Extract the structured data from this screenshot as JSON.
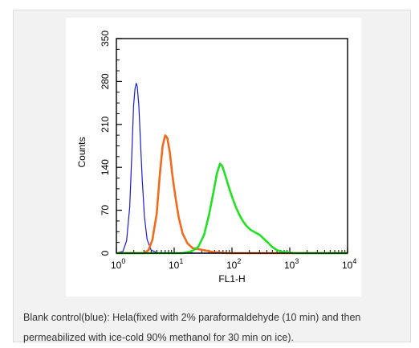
{
  "caption": "Blank control(blue): Hela(fixed with 2% paraformaldehyde (10 min) and then permeabilized with ice-cold 90% methanol for 30 min on ice).",
  "chart_data": {
    "type": "line",
    "title": "",
    "xlabel": "FL1-H",
    "ylabel": "Counts",
    "x_scale": "log",
    "xlim": [
      1,
      10000
    ],
    "ylim": [
      0,
      350
    ],
    "x_ticks": [
      {
        "value": 1,
        "base": "10",
        "exp": "0"
      },
      {
        "value": 10,
        "base": "10",
        "exp": "1"
      },
      {
        "value": 100,
        "base": "10",
        "exp": "2"
      },
      {
        "value": 1000,
        "base": "10",
        "exp": "3"
      },
      {
        "value": 10000,
        "base": "10",
        "exp": "4"
      }
    ],
    "y_ticks": [
      "0",
      "70",
      "140",
      "210",
      "280",
      "350"
    ],
    "grid": false,
    "legend": "none",
    "series": [
      {
        "color": "#1a1ad6",
        "stroke_width": 1.2,
        "points": [
          [
            1,
            0
          ],
          [
            1.3,
            3
          ],
          [
            1.5,
            20
          ],
          [
            1.7,
            75
          ],
          [
            1.85,
            160
          ],
          [
            1.98,
            240
          ],
          [
            2.1,
            268
          ],
          [
            2.2,
            277
          ],
          [
            2.3,
            272
          ],
          [
            2.45,
            240
          ],
          [
            2.6,
            185
          ],
          [
            2.8,
            120
          ],
          [
            3.05,
            60
          ],
          [
            3.4,
            22
          ],
          [
            4,
            5
          ],
          [
            5,
            1
          ],
          [
            7,
            0
          ],
          [
            10000,
            0
          ]
        ]
      },
      {
        "color": "#f26a1b",
        "stroke_width": 2.6,
        "points": [
          [
            1,
            0
          ],
          [
            3,
            0
          ],
          [
            3.6,
            5
          ],
          [
            4.2,
            22
          ],
          [
            5,
            65
          ],
          [
            5.6,
            125
          ],
          [
            6.3,
            175
          ],
          [
            7,
            192
          ],
          [
            7.6,
            188
          ],
          [
            8.4,
            165
          ],
          [
            9.3,
            128
          ],
          [
            10.5,
            92
          ],
          [
            12,
            58
          ],
          [
            14,
            32
          ],
          [
            17,
            16
          ],
          [
            21,
            8
          ],
          [
            28,
            6
          ],
          [
            36,
            4
          ],
          [
            46,
            2
          ],
          [
            60,
            1
          ],
          [
            80,
            0
          ],
          [
            10000,
            0
          ]
        ]
      },
      {
        "color": "#22e022",
        "stroke_width": 2.6,
        "points": [
          [
            1,
            0
          ],
          [
            14,
            0
          ],
          [
            20,
            3
          ],
          [
            26,
            10
          ],
          [
            33,
            30
          ],
          [
            40,
            62
          ],
          [
            48,
            100
          ],
          [
            55,
            130
          ],
          [
            62,
            146
          ],
          [
            68,
            142
          ],
          [
            76,
            128
          ],
          [
            88,
            108
          ],
          [
            102,
            90
          ],
          [
            118,
            74
          ],
          [
            135,
            62
          ],
          [
            155,
            52
          ],
          [
            180,
            44
          ],
          [
            210,
            38
          ],
          [
            250,
            34
          ],
          [
            300,
            30
          ],
          [
            350,
            24
          ],
          [
            420,
            17
          ],
          [
            500,
            10
          ],
          [
            600,
            5
          ],
          [
            750,
            2
          ],
          [
            950,
            1
          ],
          [
            1200,
            0
          ],
          [
            10000,
            0
          ]
        ]
      }
    ]
  }
}
